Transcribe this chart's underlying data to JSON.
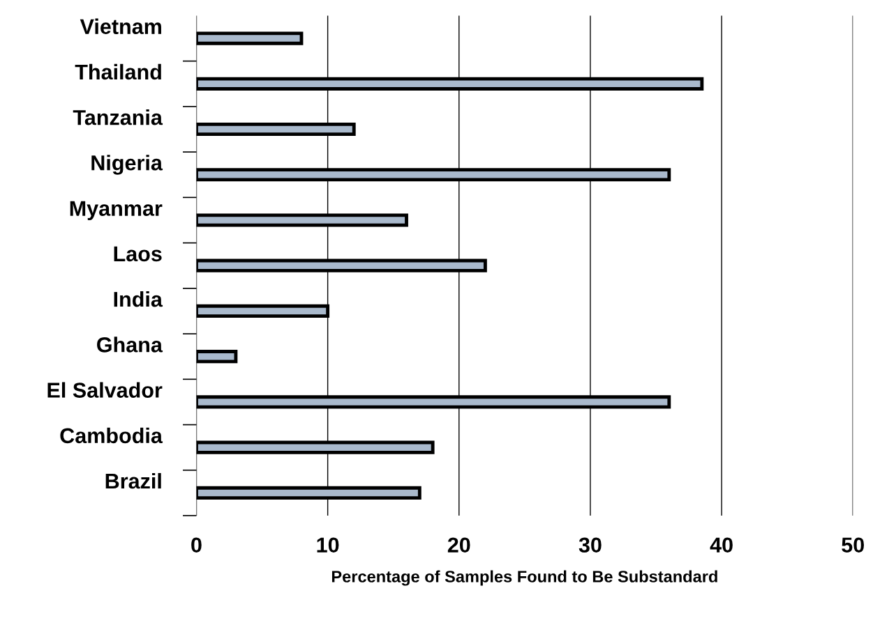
{
  "chart_data": {
    "type": "bar",
    "orientation": "horizontal",
    "xlabel": "Percentage of Samples Found to Be Substandard",
    "categories": [
      "Vietnam",
      "Thailand",
      "Tanzania",
      "Nigeria",
      "Myanmar",
      "Laos",
      "India",
      "Ghana",
      "El Salvador",
      "Cambodia",
      "Brazil"
    ],
    "values": [
      8,
      38.5,
      12,
      36,
      16,
      22,
      10,
      3,
      36,
      18,
      17
    ],
    "color": "#a9b9cc",
    "xlim": [
      0,
      50
    ],
    "xticks": [
      0,
      10,
      20,
      30,
      40,
      50
    ],
    "grid": "x"
  }
}
